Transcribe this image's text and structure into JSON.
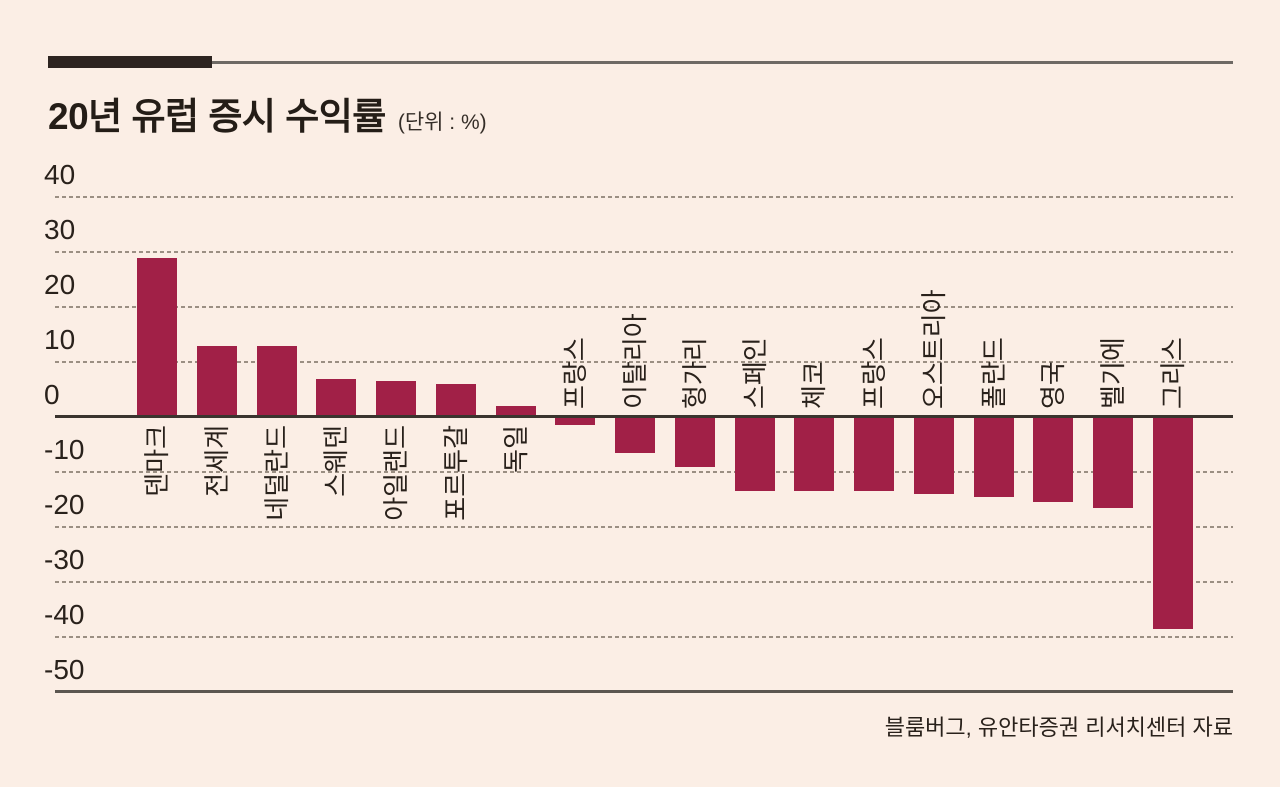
{
  "title": {
    "text": "20년 유럽 증시 수익률",
    "unit": "(단위 : %)"
  },
  "source": "블룸버그, 유안타증권 리서치센터 자료",
  "colors": {
    "background": "#fbeee5",
    "bar": "#a12047",
    "text": "#29211b",
    "grid_dash": "#9b8f83",
    "zero_line": "#3a342e",
    "base_line": "#5b5650",
    "header_bar": "#2d2420",
    "header_line": "#6e6964"
  },
  "chart_data": {
    "type": "bar",
    "title": "20년 유럽 증시 수익률",
    "unit_label": "(단위 : %)",
    "categories": [
      "덴마크",
      "전세계",
      "네덜란드",
      "스웨덴",
      "아일랜드",
      "포르투갈",
      "독일",
      "프랑스",
      "이탈리아",
      "헝가리",
      "스페인",
      "체코",
      "프랑스",
      "오스트리아",
      "폴란드",
      "영국",
      "벨기에",
      "그리스"
    ],
    "values": [
      29,
      13,
      13,
      7,
      6.5,
      6,
      2,
      -1.5,
      -6.5,
      -9,
      -13.5,
      -13.5,
      -13.5,
      -14,
      -14.5,
      -15.5,
      -16.5,
      -38.5
    ],
    "yticks": [
      40,
      30,
      20,
      10,
      0,
      -10,
      -20,
      -30,
      -40,
      -50
    ],
    "ylim": [
      -50,
      40
    ],
    "grid": "horizontal-dashed",
    "legend": "none",
    "label_placement": "positive bars labeled below axis, negative bars labeled above axis, labels rotated 90° CCW"
  }
}
